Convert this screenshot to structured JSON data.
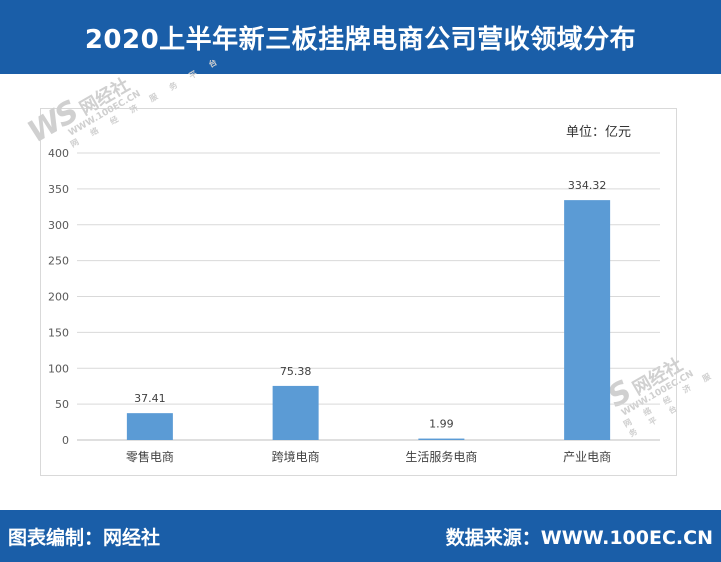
{
  "header": {
    "title": "2020上半年新三板挂牌电商公司营收领域分布"
  },
  "footer": {
    "left": "图表编制：网经社",
    "right": "数据来源：WWW.100EC.CN"
  },
  "unit_label": "单位：亿元",
  "watermark": {
    "logo": "WS",
    "name": "网经社",
    "url": "WWW.100EC.CN",
    "tagline": "网 络 经 济 服 务 平 台"
  },
  "colors": {
    "header_bg": "#1a5ea8",
    "bar": "#5b9bd5",
    "grid": "#d9d9d9"
  },
  "chart_data": {
    "type": "bar",
    "title": "2020上半年新三板挂牌电商公司营收领域分布",
    "categories": [
      "零售电商",
      "跨境电商",
      "生活服务电商",
      "产业电商"
    ],
    "values": [
      37.41,
      75.38,
      1.99,
      334.32
    ],
    "value_labels": [
      "37.41",
      "75.38",
      "1.99",
      "334.32"
    ],
    "yticks": [
      "0",
      "50",
      "100",
      "150",
      "200",
      "250",
      "300",
      "350",
      "400"
    ],
    "ylim": [
      0,
      400
    ],
    "xlabel": "",
    "ylabel": "",
    "unit": "单位：亿元",
    "grid": true,
    "legend": "none"
  }
}
